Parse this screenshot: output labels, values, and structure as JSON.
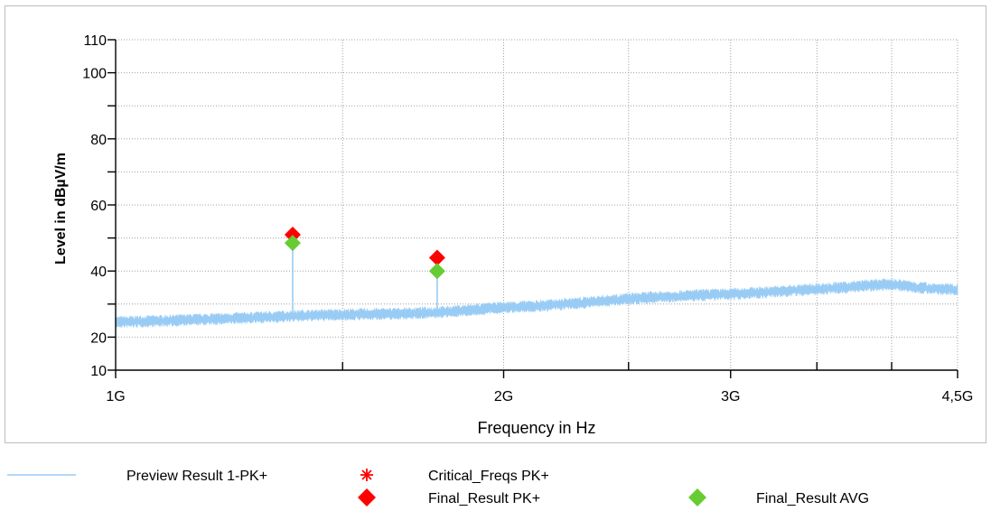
{
  "chart_data": {
    "type": "line",
    "title": "",
    "xlabel": "Frequency in Hz",
    "ylabel": "Level in dBµV/m",
    "x_scale": "log",
    "xlim": [
      1000000000,
      4500000000
    ],
    "ylim": [
      10,
      110
    ],
    "x_ticks": [
      {
        "value": 1000000000,
        "label": "1G"
      },
      {
        "value": 2000000000,
        "label": "2G"
      },
      {
        "value": 3000000000,
        "label": "3G"
      },
      {
        "value": 4500000000,
        "label": "4,5G"
      }
    ],
    "x_minor_ticks": [
      1500000000,
      2500000000,
      3500000000,
      4000000000
    ],
    "y_ticks": [
      {
        "value": 10,
        "label": "10"
      },
      {
        "value": 20,
        "label": "20"
      },
      {
        "value": 40,
        "label": "40"
      },
      {
        "value": 60,
        "label": "60"
      },
      {
        "value": 80,
        "label": "80"
      },
      {
        "value": 100,
        "label": "100"
      },
      {
        "value": 110,
        "label": "110"
      }
    ],
    "y_minor_ticks": [
      30,
      50,
      70,
      90
    ],
    "grid": true,
    "colors": {
      "preview": "#99ccf5",
      "critical": "#ff0000",
      "final_pk": "#ff0000",
      "final_avg": "#66cc33"
    },
    "series": [
      {
        "name": "Preview Result 1-PK+",
        "style": "line",
        "x": [
          1000000000,
          1100000000,
          1200000000,
          1300000000,
          1400000000,
          1500000000,
          1600000000,
          1700000000,
          1800000000,
          1900000000,
          2000000000,
          2100000000,
          2200000000,
          2300000000,
          2400000000,
          2500000000,
          2600000000,
          2700000000,
          2800000000,
          2900000000,
          3000000000,
          3100000000,
          3200000000,
          3300000000,
          3400000000,
          3500000000,
          3600000000,
          3700000000,
          3800000000,
          3900000000,
          4000000000,
          4100000000,
          4200000000,
          4300000000,
          4400000000,
          4500000000
        ],
        "y": [
          24.5,
          25,
          25.5,
          26,
          26.5,
          26.8,
          27,
          27.2,
          27.6,
          28.3,
          29,
          29.3,
          29.8,
          30.4,
          31,
          31.6,
          32,
          32.3,
          32.6,
          32.8,
          33,
          33.3,
          33.6,
          33.9,
          34.2,
          34.5,
          34.8,
          35.1,
          35.5,
          35.8,
          36,
          35.5,
          35,
          34.7,
          34.5,
          34.3
        ]
      },
      {
        "name": "Critical_Freqs PK+",
        "style": "asterisk",
        "x": [],
        "y": []
      },
      {
        "name": "Final_Result PK+",
        "style": "diamond",
        "x": [
          1372000000,
          1776000000
        ],
        "y": [
          51,
          44
        ]
      },
      {
        "name": "Final_Result AVG",
        "style": "diamond",
        "x": [
          1372000000,
          1776000000
        ],
        "y": [
          48.5,
          40
        ]
      }
    ],
    "legend_position": "bottom"
  }
}
